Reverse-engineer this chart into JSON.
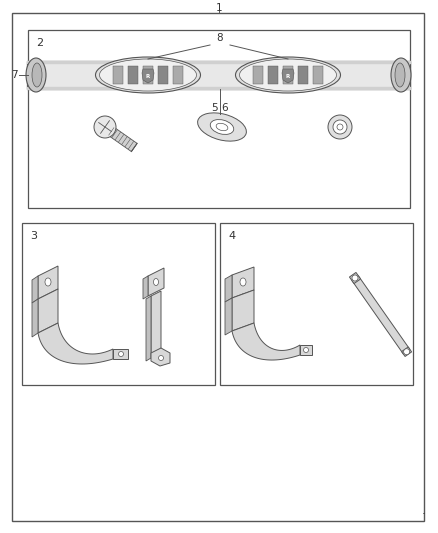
{
  "bg_color": "#ffffff",
  "line_color": "#555555",
  "label_color": "#333333",
  "fig_width": 4.38,
  "fig_height": 5.33,
  "labels": {
    "1": "1",
    "2": "2",
    "3": "3",
    "4": "4",
    "5": "5",
    "6": "6",
    "7": "7",
    "8": "8"
  }
}
